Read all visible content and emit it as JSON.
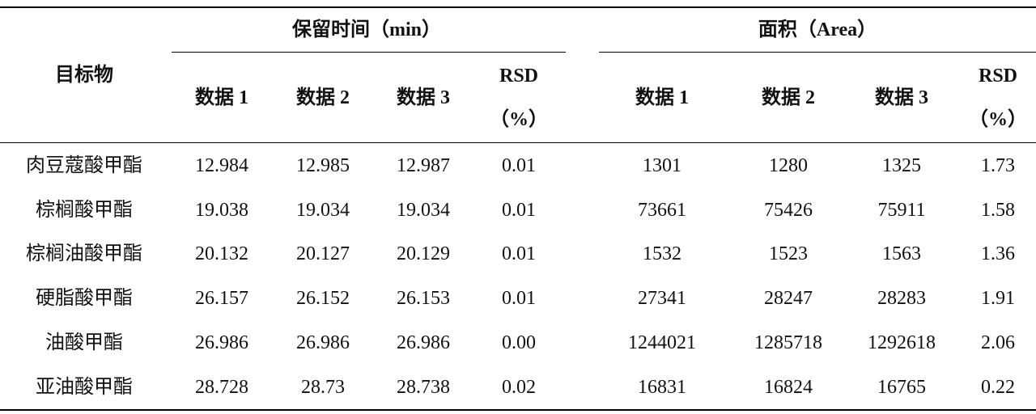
{
  "table": {
    "header": {
      "target": "目标物",
      "group_retention": "保留时间（min）",
      "group_area": "面积（Area）",
      "data1": "数据 1",
      "data2": "数据 2",
      "data3": "数据 3",
      "rsd": "RSD",
      "rsd_unit": "（%）"
    },
    "rows": [
      {
        "name": "肉豆蔻酸甲酯",
        "rt": [
          "12.984",
          "12.985",
          "12.987"
        ],
        "rt_rsd": "0.01",
        "area": [
          "1301",
          "1280",
          "1325"
        ],
        "area_rsd": "1.73"
      },
      {
        "name": "棕榈酸甲酯",
        "rt": [
          "19.038",
          "19.034",
          "19.034"
        ],
        "rt_rsd": "0.01",
        "area": [
          "73661",
          "75426",
          "75911"
        ],
        "area_rsd": "1.58"
      },
      {
        "name": "棕榈油酸甲酯",
        "rt": [
          "20.132",
          "20.127",
          "20.129"
        ],
        "rt_rsd": "0.01",
        "area": [
          "1532",
          "1523",
          "1563"
        ],
        "area_rsd": "1.36"
      },
      {
        "name": "硬脂酸甲酯",
        "rt": [
          "26.157",
          "26.152",
          "26.153"
        ],
        "rt_rsd": "0.01",
        "area": [
          "27341",
          "28247",
          "28283"
        ],
        "area_rsd": "1.91"
      },
      {
        "name": "油酸甲酯",
        "rt": [
          "26.986",
          "26.986",
          "26.986"
        ],
        "rt_rsd": "0.00",
        "area": [
          "1244021",
          "1285718",
          "1292618"
        ],
        "area_rsd": "2.06"
      },
      {
        "name": "亚油酸甲酯",
        "rt": [
          "28.728",
          "28.73",
          "28.738"
        ],
        "rt_rsd": "0.02",
        "area": [
          "16831",
          "16824",
          "16765"
        ],
        "area_rsd": "0.22"
      }
    ]
  }
}
